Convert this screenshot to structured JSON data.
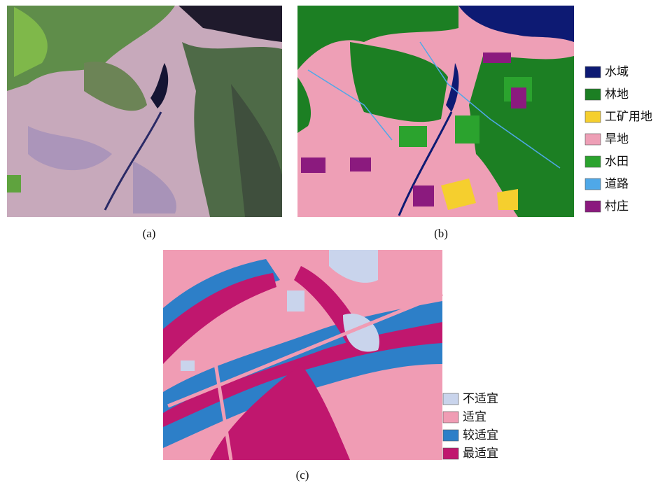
{
  "panels": [
    {
      "caption": "(a)"
    },
    {
      "caption": "(b)",
      "legend": [
        {
          "label": "水域",
          "color": "#0d1a73"
        },
        {
          "label": "林地",
          "color": "#1c7f23"
        },
        {
          "label": "工矿用地",
          "color": "#f5cf2e"
        },
        {
          "label": "旱地",
          "color": "#ee9fb6"
        },
        {
          "label": "水田",
          "color": "#2ba32e"
        },
        {
          "label": "道路",
          "color": "#4fa8e8"
        },
        {
          "label": "村庄",
          "color": "#8b1a7e"
        }
      ]
    },
    {
      "caption": "(c)",
      "legend": [
        {
          "label": "不适宜",
          "color": "#c9d4ec"
        },
        {
          "label": "适宜",
          "color": "#f09cb4"
        },
        {
          "label": "较适宜",
          "color": "#2d7fc8"
        },
        {
          "label": "最适宜",
          "color": "#c0176e"
        }
      ]
    }
  ]
}
